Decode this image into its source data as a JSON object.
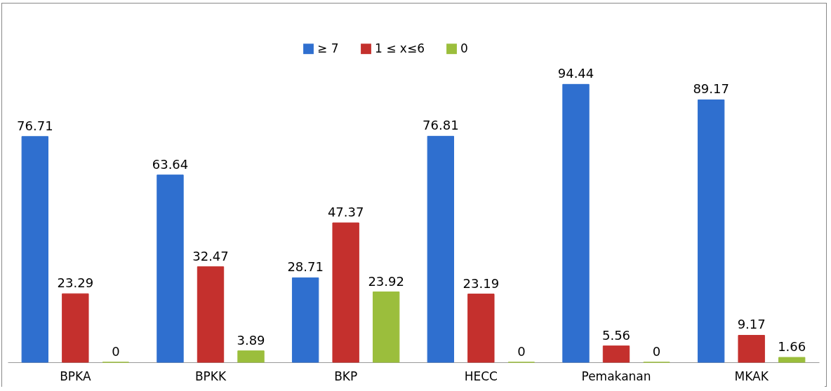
{
  "chart_data": {
    "type": "bar",
    "categories": [
      "BPKA",
      "BPKK",
      "BKP",
      "HECC",
      "Pemakanan",
      "MKAK"
    ],
    "series": [
      {
        "name": "≥ 7",
        "color": "#2f6fcf",
        "values": [
          76.71,
          63.64,
          28.71,
          76.81,
          94.44,
          89.17
        ]
      },
      {
        "name": "1 ≤ x≤6",
        "color": "#c4302d",
        "values": [
          23.29,
          32.47,
          47.37,
          23.19,
          5.56,
          9.17
        ]
      },
      {
        "name": "0",
        "color": "#9bbe3c",
        "values": [
          0,
          3.89,
          23.92,
          0,
          0,
          1.66
        ]
      }
    ],
    "data_labels": true,
    "legend": "top",
    "grid": false
  }
}
